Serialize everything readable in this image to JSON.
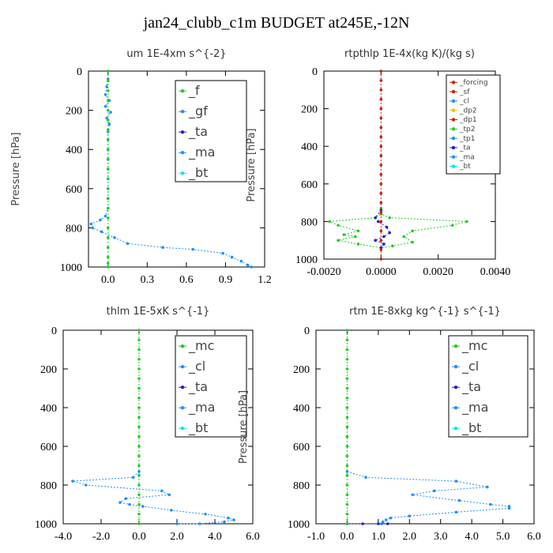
{
  "title": "jan24_clubb_c1m  BUDGET at245E,-12N",
  "chart_data": [
    {
      "type": "line",
      "title": "um  1E-4xm s^{-2}",
      "ylabel": "Pressure [hPa]",
      "xlim": [
        -0.15,
        1.2
      ],
      "ylim": [
        1000,
        0
      ],
      "xticks": [
        "0.0",
        "0.3",
        "0.6",
        "0.9",
        "1.2"
      ],
      "xtick_values": [
        0,
        0.3,
        0.6,
        0.9,
        1.2
      ],
      "yticks": [
        "0",
        "200",
        "400",
        "600",
        "800",
        "1000"
      ],
      "ytick_values": [
        0,
        200,
        400,
        600,
        800,
        1000
      ],
      "legend": [
        "_f",
        "_gf",
        "_ta",
        "_ma",
        "_bt"
      ],
      "series": [
        {
          "name": "_gf",
          "color": "#1e90ff",
          "x": [
            0,
            0,
            -0.01,
            -0.02,
            0.01,
            -0.02,
            0.02,
            -0.01,
            0.01,
            0,
            0,
            0,
            0,
            0,
            0,
            0,
            0,
            0,
            -0.02,
            -0.06,
            -0.13,
            -0.12,
            -0.05,
            0.05,
            0.15,
            0.42,
            0.65,
            0.88,
            0.95,
            1.02,
            1.07,
            1.1
          ],
          "y": [
            0,
            40,
            80,
            120,
            150,
            180,
            210,
            240,
            270,
            310,
            350,
            400,
            450,
            500,
            550,
            600,
            650,
            700,
            740,
            760,
            780,
            800,
            820,
            850,
            880,
            900,
            910,
            930,
            950,
            970,
            990,
            1000
          ]
        },
        {
          "name": "_f",
          "color": "#22cc22",
          "x": [
            0,
            0,
            0,
            0,
            0,
            0,
            0,
            0,
            0,
            0,
            0,
            0,
            0,
            0,
            0,
            0,
            0,
            0,
            0,
            0,
            0,
            0
          ],
          "y": [
            0,
            50,
            100,
            150,
            200,
            250,
            300,
            350,
            400,
            450,
            500,
            550,
            600,
            650,
            700,
            750,
            800,
            850,
            900,
            950,
            980,
            1000
          ]
        }
      ]
    },
    {
      "type": "line",
      "title": "rtpthlp  1E-4x(kg K)/(kg s)",
      "ylabel": "Pressure [hPa]",
      "xlim": [
        -0.002,
        0.004
      ],
      "ylim": [
        1000,
        0
      ],
      "xticks": [
        "-0.0020",
        "0.0000",
        "0.0020",
        "0.0040"
      ],
      "xtick_values": [
        -0.002,
        0,
        0.002,
        0.004
      ],
      "yticks": [
        "0",
        "200",
        "400",
        "600",
        "800",
        "1000"
      ],
      "ytick_values": [
        0,
        200,
        400,
        600,
        800,
        1000
      ],
      "legend": [
        "_forcing",
        "_sf",
        "_cl",
        "_dp2",
        "_dp1",
        "_tp2",
        "_tp1",
        "_ta",
        "_ma",
        "_bt"
      ],
      "series": [
        {
          "name": "_tp2",
          "color": "#22cc22",
          "x": [
            0,
            0,
            -0.0002,
            -0.0018,
            -0.0015,
            -0.0008,
            -0.0013,
            -0.0009,
            -0.0015,
            -0.0008,
            0,
            0.0004,
            0.0011,
            0.0008,
            0.0011,
            0.0025,
            0.003,
            0.0003,
            0
          ],
          "y": [
            730,
            760,
            780,
            800,
            820,
            850,
            870,
            880,
            900,
            920,
            940,
            930,
            910,
            880,
            850,
            820,
            800,
            780,
            760
          ]
        },
        {
          "name": "_ta",
          "color": "#2222cc",
          "x": [
            0,
            -0.0002,
            -0.0001,
            0.0002,
            0.0003,
            0.0001,
            -0.0002,
            0.0001,
            0
          ],
          "y": [
            740,
            780,
            800,
            830,
            860,
            880,
            900,
            920,
            940
          ]
        },
        {
          "name": "_forcing",
          "color": "#cc2200",
          "x": [
            0,
            0,
            0,
            0,
            0,
            0,
            0,
            0,
            0,
            0,
            0,
            0,
            0,
            0,
            0,
            0,
            0,
            0,
            0,
            0,
            0
          ],
          "y": [
            0,
            50,
            100,
            150,
            200,
            250,
            300,
            350,
            400,
            450,
            500,
            550,
            600,
            650,
            700,
            750,
            800,
            850,
            900,
            950,
            1000
          ]
        }
      ]
    },
    {
      "type": "line",
      "title": "thlm  1E-5xK s^{-1}",
      "ylabel": "Pressure [hPa]",
      "xlim": [
        -4.0,
        6.0
      ],
      "ylim": [
        1000,
        0
      ],
      "xticks": [
        "-4.0",
        "-2.0",
        "0.0",
        "2.0",
        "4.0",
        "6.0"
      ],
      "xtick_values": [
        -4,
        -2,
        0,
        2,
        4,
        6
      ],
      "yticks": [
        "0",
        "200",
        "400",
        "600",
        "800",
        "1000"
      ],
      "ytick_values": [
        0,
        200,
        400,
        600,
        800,
        1000
      ],
      "legend": [
        "_mc",
        "_cl",
        "_ta",
        "_ma",
        "_bt"
      ],
      "series": [
        {
          "name": "_cl",
          "color": "#1e90ff",
          "x": [
            0,
            -0.3,
            -3.5,
            -2.8,
            1.2,
            1.6,
            -0.7,
            -1.0,
            -0.5,
            0.2,
            1.7,
            3.5,
            4.7,
            5.0,
            4.5,
            3.2,
            2.0
          ],
          "y": [
            730,
            760,
            780,
            800,
            830,
            850,
            870,
            890,
            900,
            910,
            930,
            950,
            970,
            980,
            990,
            1000,
            1000
          ]
        },
        {
          "name": "_mc",
          "color": "#22cc22",
          "x": [
            0,
            0,
            0,
            0,
            0,
            0,
            0,
            0,
            0,
            0,
            0,
            0,
            0,
            0,
            0,
            0,
            0,
            0,
            0,
            0,
            0
          ],
          "y": [
            0,
            50,
            100,
            150,
            200,
            250,
            300,
            350,
            400,
            450,
            500,
            550,
            600,
            650,
            700,
            750,
            800,
            850,
            900,
            950,
            1000
          ]
        }
      ]
    },
    {
      "type": "line",
      "title": "rtm  1E-8xkg kg^{-1} s^{-1}",
      "ylabel": "Pressure [hPa]",
      "xlim": [
        -1.0,
        6.0
      ],
      "ylim": [
        1000,
        0
      ],
      "xticks": [
        "-1.0",
        "0.0",
        "1.0",
        "2.0",
        "3.0",
        "4.0",
        "5.0",
        "6.0"
      ],
      "xtick_values": [
        -1,
        0,
        1,
        2,
        3,
        4,
        5,
        6
      ],
      "yticks": [
        "0",
        "200",
        "400",
        "600",
        "800",
        "1000"
      ],
      "ytick_values": [
        0,
        200,
        400,
        600,
        800,
        1000
      ],
      "legend": [
        "_mc",
        "_cl",
        "_ta",
        "_ma",
        "_bt"
      ],
      "series": [
        {
          "name": "_cl",
          "color": "#1e90ff",
          "x": [
            0,
            0.6,
            3.5,
            4.5,
            2.8,
            2.1,
            3.6,
            4.6,
            5.2,
            5.2,
            3.5,
            2.0,
            1.4,
            1.25,
            1.15,
            1.1
          ],
          "y": [
            730,
            760,
            780,
            810,
            830,
            850,
            880,
            900,
            910,
            920,
            940,
            960,
            970,
            980,
            990,
            1000
          ]
        },
        {
          "name": "_ta",
          "color": "#2222cc",
          "x": [
            0,
            0.5,
            1.0,
            1.3
          ],
          "y": [
            1000,
            1000,
            1000,
            1000
          ]
        },
        {
          "name": "_mc",
          "color": "#22cc22",
          "x": [
            0,
            0,
            0,
            0,
            0,
            0,
            0,
            0,
            0,
            0,
            0,
            0,
            0,
            0,
            0,
            0,
            0,
            0,
            0,
            0,
            0
          ],
          "y": [
            0,
            50,
            100,
            150,
            200,
            250,
            300,
            350,
            400,
            450,
            500,
            550,
            600,
            650,
            700,
            750,
            800,
            850,
            900,
            950,
            1000
          ]
        }
      ]
    }
  ],
  "legend_colors": {
    "_f": "#22cc22",
    "_gf": "#1e90ff",
    "_ta": "#2222cc",
    "_ma": "#1e90ff",
    "_bt": "#00e5ee",
    "_forcing": "#cc2200",
    "_sf": "#cc2200",
    "_cl": "#1e90ff",
    "_dp2": "#e6c800",
    "_dp1": "#cc2200",
    "_tp2": "#22cc22",
    "_tp1": "#1e90ff",
    "_mc": "#22cc22"
  }
}
